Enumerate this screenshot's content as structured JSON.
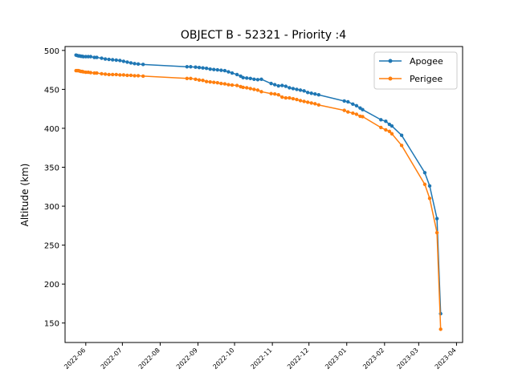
{
  "chart_data": {
    "type": "line",
    "title": "OBJECT B - 52321 - Priority :4",
    "xlabel": "",
    "ylabel": "Altitude (km)",
    "ylim": [
      125,
      505
    ],
    "xlim": [
      "2022-05-15",
      "2023-04-06"
    ],
    "yticks": [
      150,
      200,
      250,
      300,
      350,
      400,
      450,
      500
    ],
    "xticks": [
      "2022-06",
      "2022-07",
      "2022-08",
      "2022-09",
      "2022-10",
      "2022-11",
      "2022-12",
      "2023-01",
      "2023-02",
      "2023-03",
      "2023-04"
    ],
    "grid": false,
    "legend": "top-right",
    "series": [
      {
        "name": "Apogee",
        "color": "#1f77b4",
        "points": [
          [
            "2022-05-24",
            494
          ],
          [
            "2022-05-25",
            493.5
          ],
          [
            "2022-05-26",
            493
          ],
          [
            "2022-05-27",
            493
          ],
          [
            "2022-05-28",
            492.5
          ],
          [
            "2022-05-29",
            492.5
          ],
          [
            "2022-05-30",
            492
          ],
          [
            "2022-06-01",
            492
          ],
          [
            "2022-06-03",
            492
          ],
          [
            "2022-06-05",
            492
          ],
          [
            "2022-06-08",
            491
          ],
          [
            "2022-06-10",
            491
          ],
          [
            "2022-06-14",
            490
          ],
          [
            "2022-06-17",
            489
          ],
          [
            "2022-06-20",
            488.5
          ],
          [
            "2022-06-23",
            488
          ],
          [
            "2022-06-26",
            487.5
          ],
          [
            "2022-06-29",
            487
          ],
          [
            "2022-07-02",
            486
          ],
          [
            "2022-07-05",
            485
          ],
          [
            "2022-07-08",
            484
          ],
          [
            "2022-07-11",
            483
          ],
          [
            "2022-07-14",
            482.5
          ],
          [
            "2022-07-18",
            482
          ],
          [
            "2022-08-23",
            479
          ],
          [
            "2022-08-26",
            479
          ],
          [
            "2022-08-30",
            478.5
          ],
          [
            "2022-09-02",
            478
          ],
          [
            "2022-09-05",
            477.5
          ],
          [
            "2022-09-08",
            477
          ],
          [
            "2022-09-11",
            476
          ],
          [
            "2022-09-14",
            475.5
          ],
          [
            "2022-09-17",
            475
          ],
          [
            "2022-09-20",
            474.5
          ],
          [
            "2022-09-23",
            474
          ],
          [
            "2022-09-26",
            472.5
          ],
          [
            "2022-09-29",
            471
          ],
          [
            "2022-10-03",
            469
          ],
          [
            "2022-10-06",
            467
          ],
          [
            "2022-10-08",
            465
          ],
          [
            "2022-10-11",
            464.5
          ],
          [
            "2022-10-14",
            464
          ],
          [
            "2022-10-17",
            463
          ],
          [
            "2022-10-20",
            462.5
          ],
          [
            "2022-10-23",
            463
          ],
          [
            "2022-10-31",
            457.5
          ],
          [
            "2022-11-03",
            456
          ],
          [
            "2022-11-06",
            454.5
          ],
          [
            "2022-11-09",
            455
          ],
          [
            "2022-11-12",
            454
          ],
          [
            "2022-11-15",
            452
          ],
          [
            "2022-11-18",
            451
          ],
          [
            "2022-11-21",
            450
          ],
          [
            "2022-11-24",
            449
          ],
          [
            "2022-11-27",
            448
          ],
          [
            "2022-11-30",
            446
          ],
          [
            "2022-12-03",
            445
          ],
          [
            "2022-12-06",
            444
          ],
          [
            "2022-12-09",
            443
          ],
          [
            "2022-12-30",
            435
          ],
          [
            "2023-01-02",
            434
          ],
          [
            "2023-01-06",
            431
          ],
          [
            "2023-01-09",
            429
          ],
          [
            "2023-01-12",
            426
          ],
          [
            "2023-01-14",
            424
          ],
          [
            "2023-01-29",
            411
          ],
          [
            "2023-02-02",
            409
          ],
          [
            "2023-02-05",
            405
          ],
          [
            "2023-02-07",
            403
          ],
          [
            "2023-02-15",
            391
          ],
          [
            "2023-03-06",
            343
          ],
          [
            "2023-03-10",
            326
          ],
          [
            "2023-03-16",
            284
          ],
          [
            "2023-03-19",
            162
          ]
        ]
      },
      {
        "name": "Perigee",
        "color": "#ff7f0e",
        "points": [
          [
            "2022-05-24",
            474
          ],
          [
            "2022-05-25",
            474
          ],
          [
            "2022-05-26",
            474
          ],
          [
            "2022-05-27",
            473.5
          ],
          [
            "2022-05-28",
            473
          ],
          [
            "2022-05-29",
            473
          ],
          [
            "2022-05-30",
            472.5
          ],
          [
            "2022-06-01",
            472
          ],
          [
            "2022-06-03",
            472
          ],
          [
            "2022-06-05",
            471.5
          ],
          [
            "2022-06-08",
            471
          ],
          [
            "2022-06-10",
            471
          ],
          [
            "2022-06-14",
            470
          ],
          [
            "2022-06-17",
            469.5
          ],
          [
            "2022-06-20",
            469
          ],
          [
            "2022-06-23",
            469
          ],
          [
            "2022-06-26",
            469
          ],
          [
            "2022-06-29",
            468.5
          ],
          [
            "2022-07-02",
            468.5
          ],
          [
            "2022-07-05",
            468
          ],
          [
            "2022-07-08",
            468
          ],
          [
            "2022-07-11",
            467.5
          ],
          [
            "2022-07-14",
            467.5
          ],
          [
            "2022-07-18",
            467
          ],
          [
            "2022-08-23",
            464
          ],
          [
            "2022-08-26",
            464
          ],
          [
            "2022-08-30",
            463
          ],
          [
            "2022-09-02",
            462
          ],
          [
            "2022-09-05",
            461.5
          ],
          [
            "2022-09-08",
            460
          ],
          [
            "2022-09-11",
            459.5
          ],
          [
            "2022-09-14",
            459
          ],
          [
            "2022-09-17",
            458.5
          ],
          [
            "2022-09-20",
            457.5
          ],
          [
            "2022-09-23",
            457
          ],
          [
            "2022-09-26",
            456
          ],
          [
            "2022-09-29",
            455.5
          ],
          [
            "2022-10-03",
            455
          ],
          [
            "2022-10-06",
            453.5
          ],
          [
            "2022-10-08",
            452.5
          ],
          [
            "2022-10-11",
            452
          ],
          [
            "2022-10-14",
            451
          ],
          [
            "2022-10-17",
            450
          ],
          [
            "2022-10-20",
            449
          ],
          [
            "2022-10-23",
            447
          ],
          [
            "2022-10-31",
            444.5
          ],
          [
            "2022-11-03",
            444
          ],
          [
            "2022-11-06",
            443
          ],
          [
            "2022-11-09",
            440
          ],
          [
            "2022-11-12",
            439
          ],
          [
            "2022-11-15",
            439
          ],
          [
            "2022-11-18",
            438
          ],
          [
            "2022-11-21",
            437
          ],
          [
            "2022-11-24",
            435.5
          ],
          [
            "2022-11-27",
            434.5
          ],
          [
            "2022-11-30",
            433.5
          ],
          [
            "2022-12-03",
            432.5
          ],
          [
            "2022-12-06",
            431.5
          ],
          [
            "2022-12-09",
            430
          ],
          [
            "2022-12-30",
            423
          ],
          [
            "2023-01-02",
            421
          ],
          [
            "2023-01-06",
            419.5
          ],
          [
            "2023-01-09",
            418
          ],
          [
            "2023-01-12",
            415.5
          ],
          [
            "2023-01-14",
            415
          ],
          [
            "2023-01-29",
            401
          ],
          [
            "2023-02-02",
            398
          ],
          [
            "2023-02-05",
            396
          ],
          [
            "2023-02-07",
            393
          ],
          [
            "2023-02-15",
            378
          ],
          [
            "2023-03-06",
            328
          ],
          [
            "2023-03-10",
            310
          ],
          [
            "2023-03-16",
            266
          ],
          [
            "2023-03-19",
            142
          ]
        ]
      }
    ]
  }
}
